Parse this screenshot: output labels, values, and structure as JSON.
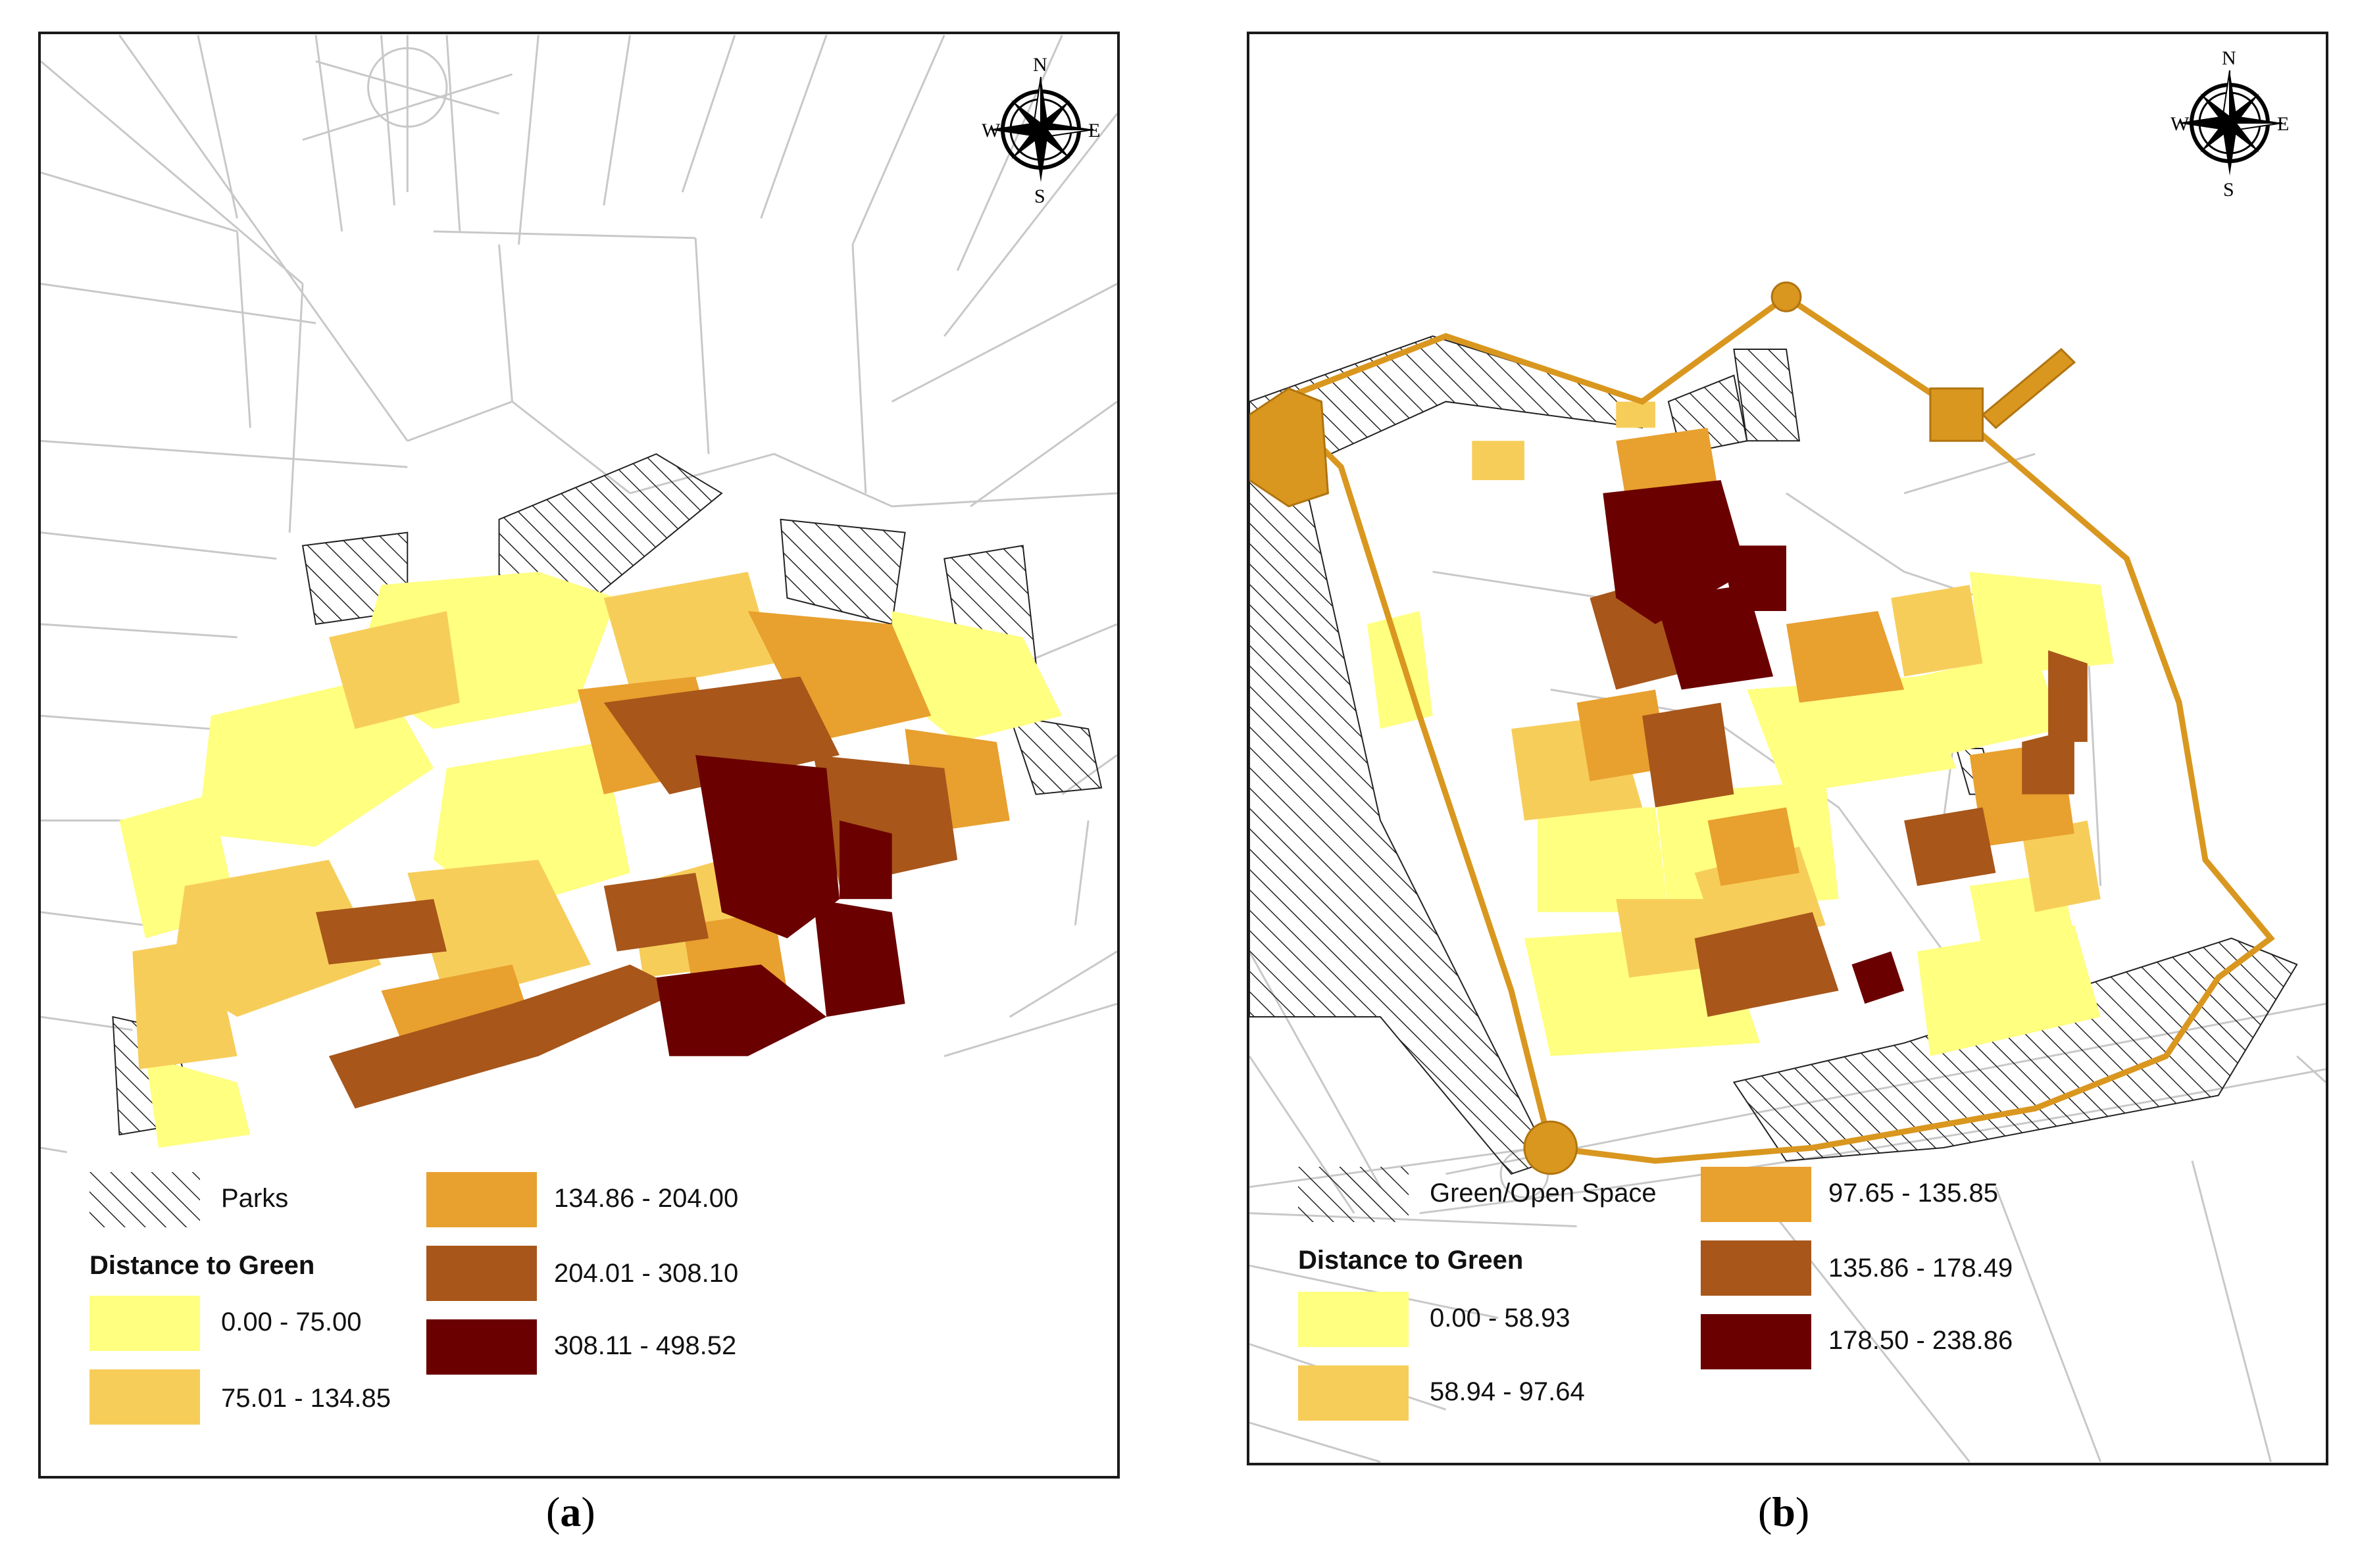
{
  "panels": [
    {
      "id": "a",
      "caption": "a",
      "compass": {
        "n": "N",
        "s": "S",
        "e": "E",
        "w": "W"
      },
      "legend": {
        "hatch_label": "Parks",
        "title": "Distance to Green",
        "classes": [
          {
            "label": "0.00 - 75.00",
            "color": "#ffff80"
          },
          {
            "label": "75.01 - 134.85",
            "color": "#f7cd5a"
          },
          {
            "label": "134.86 - 204.00",
            "color": "#e8a02e"
          },
          {
            "label": "204.01 - 308.10",
            "color": "#a8561a"
          },
          {
            "label": "308.11 - 498.52",
            "color": "#6b0000"
          }
        ]
      }
    },
    {
      "id": "b",
      "caption": "b",
      "compass": {
        "n": "N",
        "s": "S",
        "e": "E",
        "w": "W"
      },
      "legend": {
        "hatch_label": "Green/Open Space",
        "title": "Distance to Green",
        "classes": [
          {
            "label": "0.00 - 58.93",
            "color": "#ffff80"
          },
          {
            "label": "58.94 - 97.64",
            "color": "#f7cd5a"
          },
          {
            "label": "97.65 - 135.85",
            "color": "#e8a02e"
          },
          {
            "label": "135.86 - 178.49",
            "color": "#a8561a"
          },
          {
            "label": "178.50 - 238.86",
            "color": "#6b0000"
          }
        ]
      },
      "wall_color": "#d9971f"
    }
  ]
}
